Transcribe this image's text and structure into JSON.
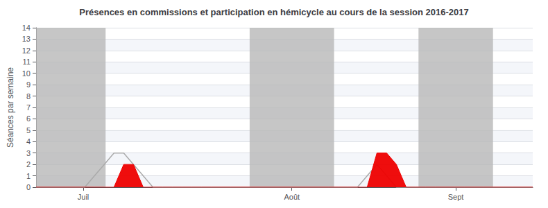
{
  "chart_data": {
    "type": "line",
    "title": "Présences en commissions et participation en hémicycle au cours de la session 2016-2017",
    "ylabel": "Séances par semaine",
    "x": [
      0,
      1,
      2,
      3,
      4,
      5,
      6,
      7,
      8,
      9,
      10,
      11,
      12,
      13,
      14,
      15,
      16,
      17,
      18,
      19,
      20,
      21,
      22,
      23,
      24,
      25,
      26,
      27,
      28,
      29,
      30,
      31,
      32,
      33,
      34,
      35,
      36,
      37,
      38,
      39,
      40,
      41,
      42,
      43,
      44,
      45,
      46,
      47,
      48,
      49,
      50,
      51
    ],
    "xlim": [
      0,
      51
    ],
    "xticks": [
      {
        "value": 4.845,
        "label": "Juil"
      },
      {
        "value": 26.265,
        "label": "Août"
      },
      {
        "value": 43.095,
        "label": "Sept"
      }
    ],
    "ylim": [
      0,
      14
    ],
    "yticks": [
      0,
      1,
      2,
      3,
      4,
      5,
      6,
      7,
      8,
      9,
      10,
      11,
      12,
      13,
      14
    ],
    "grid": true,
    "bands": [
      {
        "from": 0,
        "to": 7.14,
        "color": "#b8b8b8"
      },
      {
        "from": 21.93,
        "to": 30.6,
        "color": "#b8b8b8"
      },
      {
        "from": 39.27,
        "to": 46.92,
        "color": "#b8b8b8"
      }
    ],
    "series": [
      {
        "type": "line",
        "color": "#aaaaaa",
        "values": [
          0,
          0,
          0,
          0,
          0,
          0,
          1,
          2,
          3,
          3,
          2,
          1,
          0,
          0,
          0,
          0,
          0,
          0,
          0,
          0,
          0,
          0,
          0,
          0,
          0,
          0,
          0,
          0,
          0,
          0,
          0,
          0,
          0,
          0,
          1,
          2,
          1,
          0,
          0,
          0,
          0,
          0,
          0,
          0,
          0,
          0,
          0,
          0,
          0,
          0,
          0,
          0
        ]
      },
      {
        "type": "area",
        "color": "#ee0000",
        "values": [
          0,
          0,
          0,
          0,
          0,
          0,
          0,
          0,
          0,
          2,
          2,
          0,
          0,
          0,
          0,
          0,
          0,
          0,
          0,
          0,
          0,
          0,
          0,
          0,
          0,
          0,
          0,
          0,
          0,
          0,
          0,
          0,
          0,
          0,
          0,
          3,
          3,
          2,
          0,
          0,
          0,
          0,
          0,
          0,
          0,
          0,
          0,
          0,
          0,
          0,
          0,
          0
        ]
      }
    ]
  }
}
